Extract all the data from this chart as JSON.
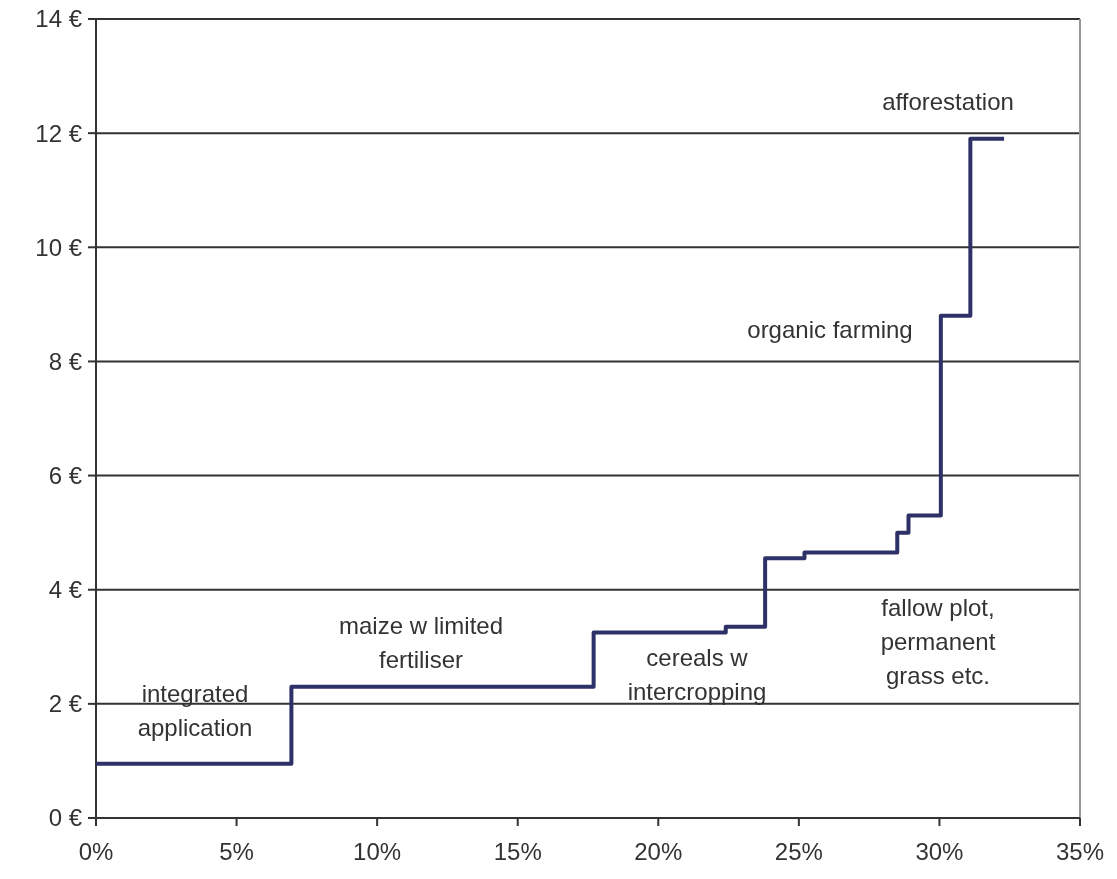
{
  "chart_data": {
    "type": "step",
    "x": [
      0,
      6.95,
      17.7,
      22.4,
      23.8,
      25.2,
      28.5,
      28.9,
      30.05,
      31.1,
      32.3
    ],
    "series": [
      {
        "color": "#2e3168",
        "values": [
          0.95,
          2.3,
          3.25,
          3.35,
          4.55,
          4.65,
          5.0,
          5.3,
          8.8,
          11.9,
          11.9
        ]
      }
    ],
    "xlim": [
      0,
      35
    ],
    "xticks": [
      {
        "value": 0,
        "label": "0%"
      },
      {
        "value": 5,
        "label": "5%"
      },
      {
        "value": 10,
        "label": "10%"
      },
      {
        "value": 15,
        "label": "15%"
      },
      {
        "value": 20,
        "label": "20%"
      },
      {
        "value": 25,
        "label": "25%"
      },
      {
        "value": 30,
        "label": "30%"
      },
      {
        "value": 35,
        "label": "35%"
      }
    ],
    "ylim": [
      0,
      14
    ],
    "yticks": [
      {
        "value": 0,
        "label": "0 €"
      },
      {
        "value": 2,
        "label": "2 €"
      },
      {
        "value": 4,
        "label": "4 €"
      },
      {
        "value": 6,
        "label": "6 €"
      },
      {
        "value": 8,
        "label": "8 €"
      },
      {
        "value": 10,
        "label": "10 €"
      },
      {
        "value": 12,
        "label": "12 €"
      },
      {
        "value": 14,
        "label": "14 €"
      }
    ],
    "grid": "y",
    "line_style": "solid",
    "marker": "none",
    "annotations": [
      "integrated\napplication",
      "maize w limited\nfertiliser",
      "cereals w\nintercropping",
      "fallow plot,\npermanent\ngrass etc.",
      "organic farming",
      "afforestation"
    ]
  }
}
